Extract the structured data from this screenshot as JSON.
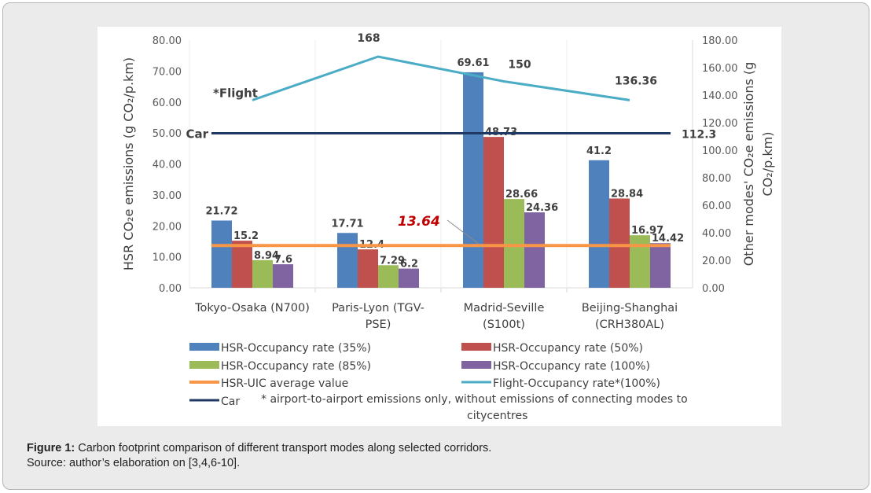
{
  "chart_data": {
    "type": "bar",
    "categories": [
      "Tokyo-Osaka (N700)",
      "Paris-Lyon (TGV-PSE)",
      "Madrid-Seville (S100t)",
      "Beijing-Shanghai (CRH380AL)"
    ],
    "category_lines": [
      [
        "Tokyo-Osaka (N700)"
      ],
      [
        "Paris-Lyon (TGV-",
        "PSE)"
      ],
      [
        "Madrid-Seville",
        "(S100t)"
      ],
      [
        "Beijing-Shanghai",
        "(CRH380AL)"
      ]
    ],
    "series": [
      {
        "name": "HSR-Occupancy rate (35%)",
        "color": "#4f81bd",
        "values": [
          21.72,
          17.71,
          69.61,
          41.2
        ],
        "labels": [
          "21.72",
          "17.71",
          "69.61",
          "41.2"
        ]
      },
      {
        "name": "HSR-Occupancy rate (50%)",
        "color": "#c0504d",
        "values": [
          15.2,
          12.4,
          48.73,
          28.84
        ],
        "labels": [
          "15.2",
          "12.4",
          "48.73",
          "28.84"
        ]
      },
      {
        "name": "HSR-Occupancy rate (85%)",
        "color": "#9bbb59",
        "values": [
          8.94,
          7.29,
          28.66,
          16.97
        ],
        "labels": [
          "8.94",
          "7.29",
          "28.66",
          "16.97"
        ]
      },
      {
        "name": "HSR-Occupancy rate (100%)",
        "color": "#8064a2",
        "values": [
          7.6,
          6.2,
          24.36,
          14.42
        ],
        "labels": [
          "7.6",
          "6.2",
          "24.36",
          "14.42"
        ]
      }
    ],
    "lines": [
      {
        "name": "HSR-UIC average value",
        "color": "#f79646",
        "axis": "left",
        "values": [
          13.64,
          13.64,
          13.64,
          13.64
        ],
        "annotation": "13.64"
      },
      {
        "name": "Flight-Occupancy rate*(100%)",
        "color": "#4bacc6",
        "axis": "right",
        "values": [
          136.36,
          168,
          150,
          136.36
        ],
        "labels": [
          "",
          "168",
          "150",
          "136.36"
        ],
        "series_label": "*Flight"
      },
      {
        "name": "Car",
        "color": "#1f3864",
        "axis": "right",
        "values": [
          112.3,
          112.3,
          112.3,
          112.3
        ],
        "end_label": "112.3",
        "series_label": "Car"
      }
    ],
    "ylabel": "HSR CO₂e emissions (g CO₂/p.km)",
    "ylabel_right": "Other modes' CO₂e emissions (g CO₂/p.km)",
    "ylabel_right_lines": [
      "Other modes' CO₂e emissions (g",
      "CO₂/p.km)"
    ],
    "ylim": [
      0,
      80
    ],
    "ylim_right": [
      0,
      180
    ],
    "yticks": [
      "0.00",
      "10.00",
      "20.00",
      "30.00",
      "40.00",
      "50.00",
      "60.00",
      "70.00",
      "80.00"
    ],
    "yticks_right": [
      "0.00",
      "20.00",
      "40.00",
      "60.00",
      "80.00",
      "100.00",
      "120.00",
      "140.00",
      "160.00",
      "180.00"
    ],
    "legend": [
      "HSR-Occupancy rate (35%)",
      "HSR-Occupancy rate (50%)",
      "HSR-Occupancy rate (85%)",
      "HSR-Occupancy rate (100%)",
      "HSR-UIC average value",
      "Flight-Occupancy rate*(100%)",
      "Car"
    ],
    "footnote": [
      "* airport-to-airport emissions only, without emissions of connecting modes to",
      "citycentres"
    ],
    "grid": false,
    "legend_position": "bottom"
  },
  "caption": {
    "label": "Figure 1:",
    "text": " Carbon footprint comparison of different transport modes along selected corridors.",
    "source": "Source: author’s elaboration on [3,4,6-10]."
  }
}
